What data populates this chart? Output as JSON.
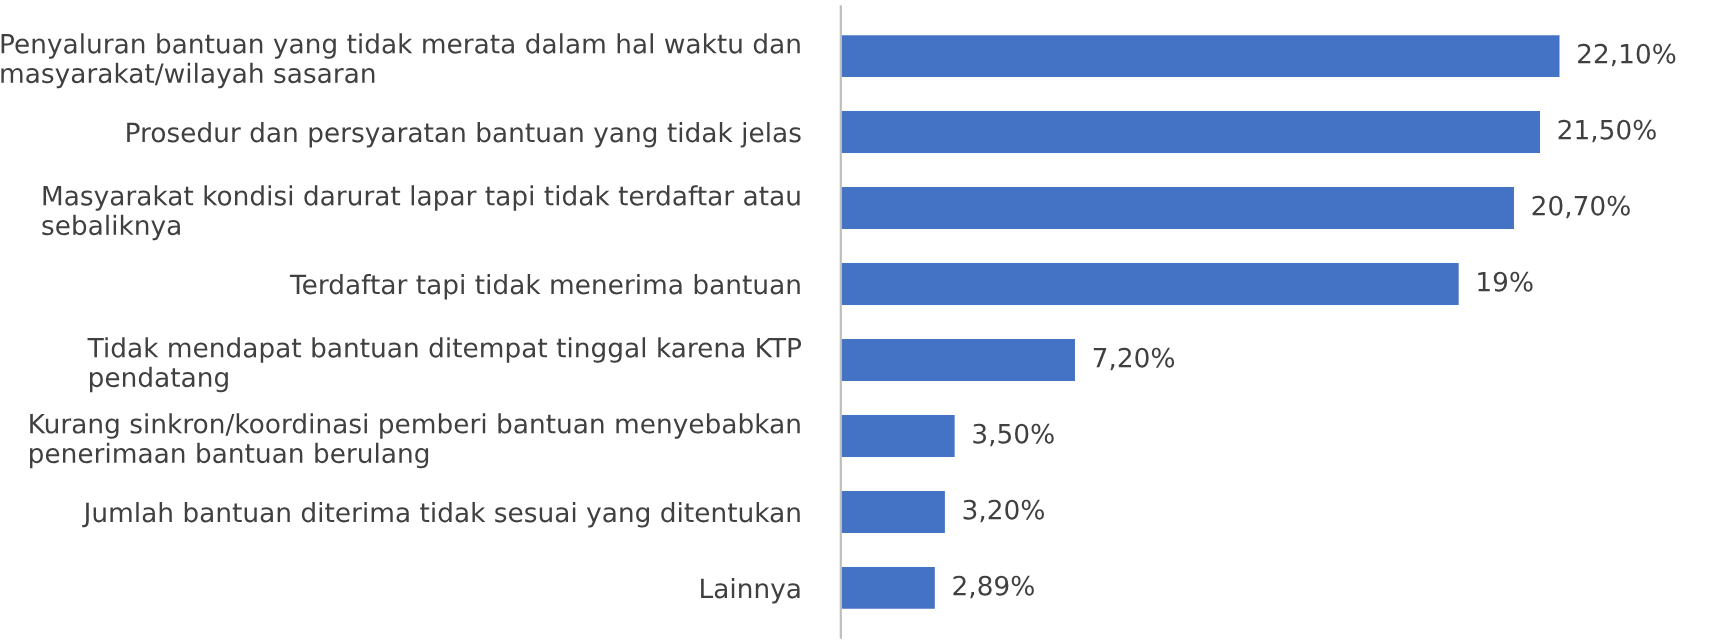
{
  "chart_data": {
    "type": "bar",
    "orientation": "horizontal",
    "categories": [
      "Penyaluran bantuan yang tidak merata dalam hal waktu dan\nmasyarakat/wilayah sasaran",
      "Prosedur dan persyaratan bantuan yang tidak jelas",
      "Masyarakat kondisi darurat lapar tapi tidak terdaftar atau\nsebaliknya",
      "Terdaftar tapi tidak menerima bantuan",
      "Tidak mendapat bantuan ditempat tinggal karena KTP\npendatang",
      "Kurang sinkron/koordinasi pemberi bantuan menyebabkan\npenerimaan bantuan berulang",
      "Jumlah bantuan diterima tidak sesuai yang ditentukan",
      "Lainnya"
    ],
    "values": [
      22.1,
      21.5,
      20.7,
      19,
      7.2,
      3.5,
      3.2,
      2.89
    ],
    "value_labels": [
      "22,10%",
      "21,50%",
      "20,70%",
      "19%",
      "7,20%",
      "3,50%",
      "3,20%",
      "2,89%"
    ],
    "color": "#4472c4",
    "grid": false
  }
}
